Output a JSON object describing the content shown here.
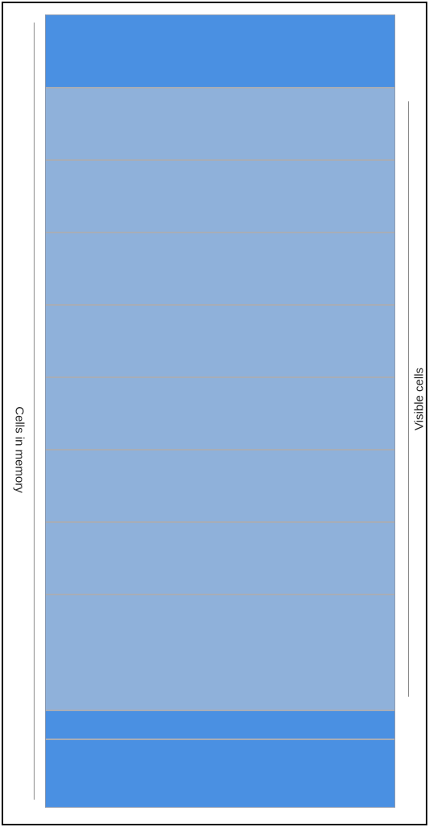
{
  "labels": {
    "memory": "Cells in memory",
    "visible": "Visible cells"
  },
  "cells": [
    {
      "state": "memory"
    },
    {
      "state": "visible"
    },
    {
      "state": "visible"
    },
    {
      "state": "visible"
    },
    {
      "state": "visible"
    },
    {
      "state": "visible"
    },
    {
      "state": "visible"
    },
    {
      "state": "visible"
    },
    {
      "state": "visible"
    },
    {
      "state": "memory"
    },
    {
      "state": "memory"
    }
  ],
  "colors": {
    "memory_cell": "#4a90e2",
    "visible_cell": "#8fb1da",
    "separator": "#a8adb6"
  }
}
